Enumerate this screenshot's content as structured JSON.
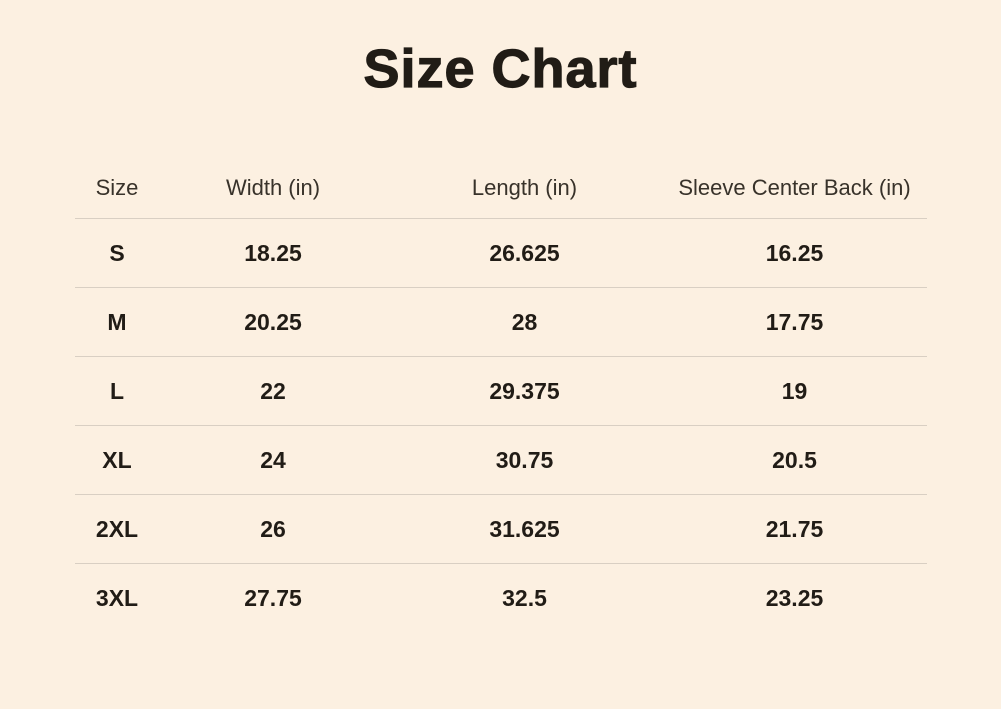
{
  "page": {
    "title": "Size Chart"
  },
  "colors": {
    "background": "#fcf0e1",
    "title_text": "#211c16",
    "header_text": "#38322a",
    "value_text": "#211c16",
    "divider": "#d9cfc3"
  },
  "chart_data": {
    "type": "table",
    "title": "Size Chart",
    "columns": [
      "Size",
      "Width (in)",
      "Length (in)",
      "Sleeve Center Back (in)"
    ],
    "rows": [
      [
        "S",
        "18.25",
        "26.625",
        "16.25"
      ],
      [
        "M",
        "20.25",
        "28",
        "17.75"
      ],
      [
        "L",
        "22",
        "29.375",
        "19"
      ],
      [
        "XL",
        "24",
        "30.75",
        "20.5"
      ],
      [
        "2XL",
        "26",
        "31.625",
        "21.75"
      ],
      [
        "3XL",
        "27.75",
        "32.5",
        "23.25"
      ]
    ]
  }
}
